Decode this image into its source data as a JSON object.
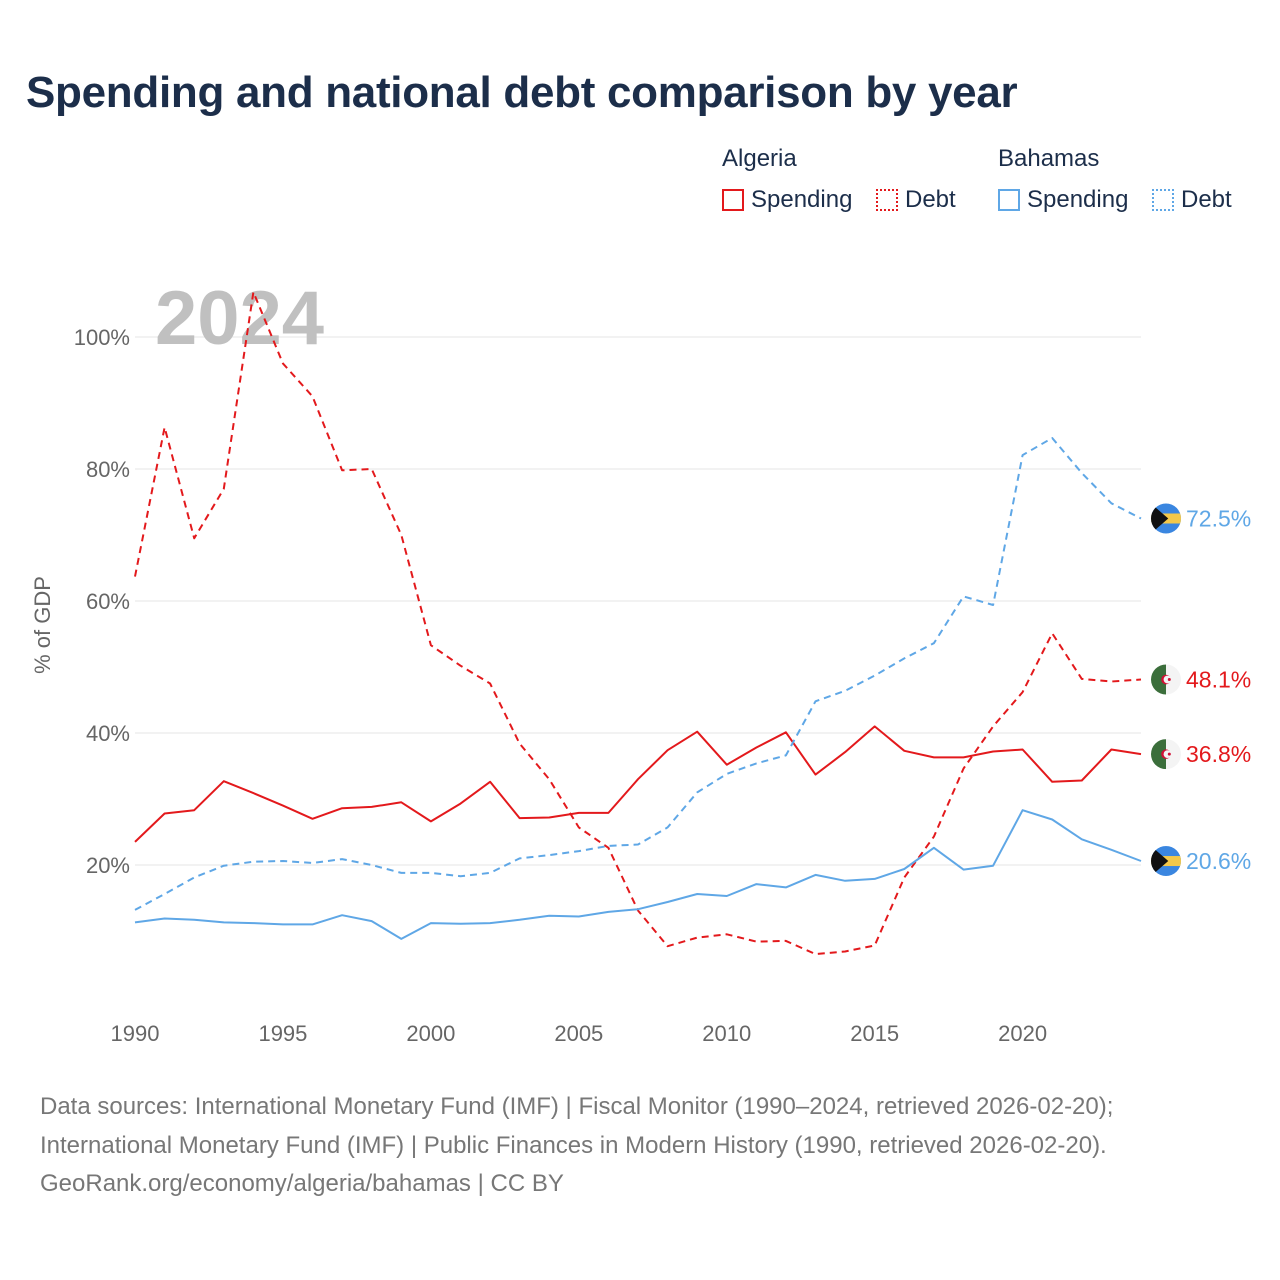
{
  "title": "Spending and national debt comparison by year",
  "legend": {
    "groups": [
      {
        "name": "Algeria",
        "color": "#e3191c",
        "items": [
          "Spending",
          "Debt"
        ]
      },
      {
        "name": "Bahamas",
        "color": "#5fa7e6",
        "items": [
          "Spending",
          "Debt"
        ]
      }
    ]
  },
  "footer": {
    "line1": "Data sources: International Monetary Fund (IMF) | Fiscal Monitor (1990–2024, retrieved 2026-02-20);",
    "line2": "International Monetary Fund (IMF) | Public Finances in Modern History (1990, retrieved 2026-02-20).",
    "line3": "GeoRank.org/economy/algeria/bahamas | CC BY"
  },
  "chart_data": {
    "type": "line",
    "year_label": "2024",
    "ylabel": "% of GDP",
    "xlabel": "",
    "xlim": [
      1990,
      2024
    ],
    "ylim": [
      0,
      110
    ],
    "x_ticks": [
      1990,
      1995,
      2000,
      2005,
      2010,
      2015,
      2020
    ],
    "y_ticks": [
      20,
      40,
      60,
      80,
      100
    ],
    "y_tick_labels": [
      "20%",
      "40%",
      "60%",
      "80%",
      "100%"
    ],
    "grid": true,
    "x": [
      1990,
      1991,
      1992,
      1993,
      1994,
      1995,
      1996,
      1997,
      1998,
      1999,
      2000,
      2001,
      2002,
      2003,
      2004,
      2005,
      2006,
      2007,
      2008,
      2009,
      2010,
      2011,
      2012,
      2013,
      2014,
      2015,
      2016,
      2017,
      2018,
      2019,
      2020,
      2021,
      2022,
      2023,
      2024
    ],
    "series": [
      {
        "name": "Algeria Spending",
        "country": "Algeria",
        "metric": "Spending",
        "color": "#e3191c",
        "dashed": false,
        "end_label": "36.8%",
        "values": [
          23.5,
          27.8,
          28.3,
          32.7,
          30.9,
          29.0,
          27.0,
          28.6,
          28.8,
          29.5,
          26.6,
          29.3,
          32.6,
          27.1,
          27.2,
          27.9,
          27.9,
          33.0,
          37.4,
          40.2,
          35.2,
          37.8,
          40.1,
          33.7,
          37.1,
          41.0,
          37.3,
          36.3,
          36.3,
          37.2,
          37.5,
          32.6,
          32.8,
          37.5,
          36.8
        ]
      },
      {
        "name": "Algeria Debt",
        "country": "Algeria",
        "metric": "Debt",
        "color": "#e3191c",
        "dashed": true,
        "end_label": "48.1%",
        "values": [
          63.7,
          86.3,
          69.5,
          77.0,
          106.8,
          96.0,
          91.0,
          79.8,
          80.0,
          70.0,
          53.3,
          50.2,
          47.5,
          38.4,
          33.0,
          25.7,
          22.6,
          13.1,
          7.7,
          9.0,
          9.5,
          8.4,
          8.5,
          6.5,
          6.9,
          7.8,
          18.1,
          24.3,
          34.6,
          41.0,
          46.2,
          55.1,
          48.2,
          47.8,
          48.1
        ]
      },
      {
        "name": "Bahamas Spending",
        "country": "Bahamas",
        "metric": "Spending",
        "color": "#5fa7e6",
        "dashed": false,
        "end_label": "20.6%",
        "values": [
          11.3,
          11.9,
          11.7,
          11.3,
          11.2,
          11.0,
          11.0,
          12.4,
          11.5,
          8.8,
          11.2,
          11.1,
          11.2,
          11.7,
          12.3,
          12.2,
          12.9,
          13.3,
          14.4,
          15.6,
          15.3,
          17.1,
          16.6,
          18.5,
          17.6,
          17.9,
          19.4,
          22.6,
          19.3,
          19.9,
          28.3,
          26.9,
          23.9,
          22.3,
          20.6
        ]
      },
      {
        "name": "Bahamas Debt",
        "country": "Bahamas",
        "metric": "Debt",
        "color": "#5fa7e6",
        "dashed": true,
        "end_label": "72.5%",
        "values": [
          13.2,
          15.6,
          18.1,
          19.9,
          20.5,
          20.6,
          20.3,
          20.9,
          20.0,
          18.8,
          18.8,
          18.3,
          18.8,
          21.0,
          21.5,
          22.1,
          22.9,
          23.1,
          25.7,
          31.0,
          33.8,
          35.4,
          36.6,
          44.8,
          46.4,
          48.7,
          51.3,
          53.6,
          60.7,
          59.4,
          82.1,
          84.7,
          79.4,
          74.8,
          72.5
        ]
      }
    ]
  }
}
